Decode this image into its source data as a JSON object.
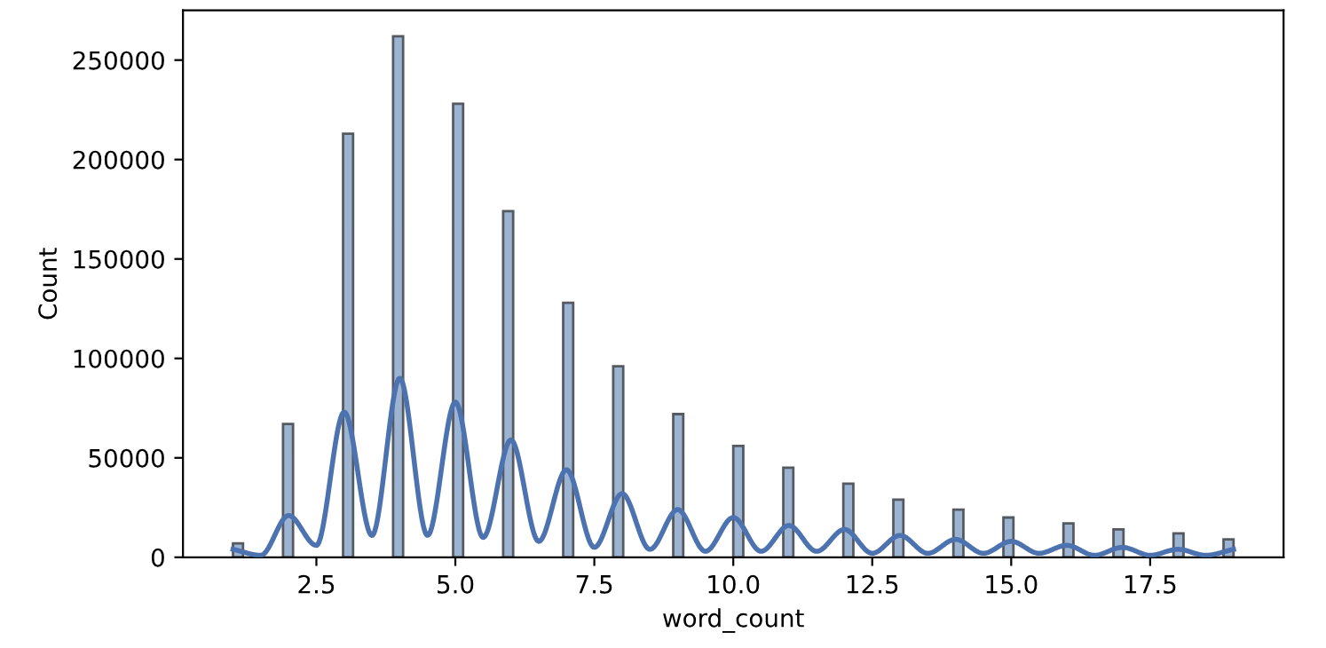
{
  "chart_data": {
    "type": "histogram",
    "xlabel": "word_count",
    "ylabel": "Count",
    "bins": [
      1.0,
      1.18,
      1.36,
      1.54,
      1.72,
      1.9,
      2.08,
      2.26,
      2.44,
      2.62,
      2.8,
      2.98,
      3.16,
      3.34,
      3.52,
      3.7,
      3.88,
      4.06,
      4.24,
      4.42,
      4.6,
      4.78,
      4.96,
      5.14,
      5.32,
      5.5,
      5.68,
      5.86,
      6.04,
      6.22,
      6.4,
      6.58,
      6.76,
      6.94,
      7.12,
      7.3,
      7.48,
      7.66,
      7.84,
      8.02,
      8.2,
      8.38,
      8.56,
      8.74,
      8.92,
      9.1,
      9.28,
      9.46,
      9.64,
      9.82,
      10.0,
      10.18,
      10.36,
      10.54,
      10.72,
      10.9,
      11.08,
      11.26,
      11.44,
      11.62,
      11.8,
      11.98,
      12.16,
      12.34,
      12.52,
      12.7,
      12.88,
      13.06,
      13.24,
      13.42,
      13.6,
      13.78,
      13.96,
      14.14,
      14.32,
      14.5,
      14.68,
      14.86,
      15.04,
      15.22,
      15.4,
      15.58,
      15.76,
      15.94,
      16.12,
      16.3,
      16.48,
      16.66,
      16.84,
      17.02,
      17.2,
      17.38,
      17.56,
      17.74,
      17.92,
      18.1,
      18.28,
      18.46,
      18.64,
      18.82,
      19.0
    ],
    "series": [
      {
        "color": "#9db3d2",
        "values": [
          7000,
          0,
          0,
          0,
          0,
          67000,
          0,
          0,
          0,
          0,
          0,
          213000,
          0,
          0,
          0,
          0,
          262000,
          0,
          0,
          0,
          0,
          0,
          228000,
          0,
          0,
          0,
          0,
          174000,
          0,
          0,
          0,
          0,
          0,
          128000,
          0,
          0,
          0,
          0,
          96000,
          0,
          0,
          0,
          0,
          0,
          72000,
          0,
          0,
          0,
          0,
          0,
          56000,
          0,
          0,
          0,
          0,
          45000,
          0,
          0,
          0,
          0,
          0,
          37000,
          0,
          0,
          0,
          0,
          29000,
          0,
          0,
          0,
          0,
          0,
          24000,
          0,
          0,
          0,
          0,
          20000,
          0,
          0,
          0,
          0,
          0,
          17000,
          0,
          0,
          0,
          0,
          14000,
          0,
          0,
          0,
          0,
          0,
          12000,
          0,
          0,
          0,
          0,
          9000
        ]
      },
      {
        "type": "line",
        "color": "#4c72b0",
        "x": [
          1,
          1.5,
          2,
          2.5,
          3,
          3.5,
          4,
          4.5,
          5,
          5.5,
          6,
          6.5,
          7,
          7.5,
          8,
          8.5,
          9,
          9.5,
          10,
          10.5,
          11,
          11.5,
          12,
          12.5,
          13,
          13.5,
          14,
          14.5,
          15,
          15.5,
          16,
          16.5,
          17,
          17.5,
          18,
          18.5,
          19
        ],
        "values": [
          4000,
          1000,
          21000,
          6000,
          73000,
          11000,
          90000,
          11000,
          78000,
          10000,
          59000,
          8000,
          44000,
          5000,
          32000,
          4000,
          24000,
          3000,
          20000,
          3000,
          16000,
          3000,
          14000,
          2000,
          11000,
          2000,
          9000,
          2000,
          8000,
          2000,
          6000,
          1000,
          5000,
          1000,
          4000,
          1000,
          4000
        ]
      }
    ],
    "xlim": [
      0.1,
      19.9
    ],
    "xticks": [
      2.5,
      {
        "value": 5.0,
        "label": "5.0"
      },
      7.5,
      {
        "value": 10.0,
        "label": "10.0"
      },
      12.5,
      {
        "value": 15.0,
        "label": "15.0"
      },
      17.5
    ],
    "ylim": [
      0,
      275000
    ],
    "yticks": [
      0,
      50000,
      100000,
      150000,
      200000,
      250000
    ],
    "grid": false,
    "legend": false
  }
}
